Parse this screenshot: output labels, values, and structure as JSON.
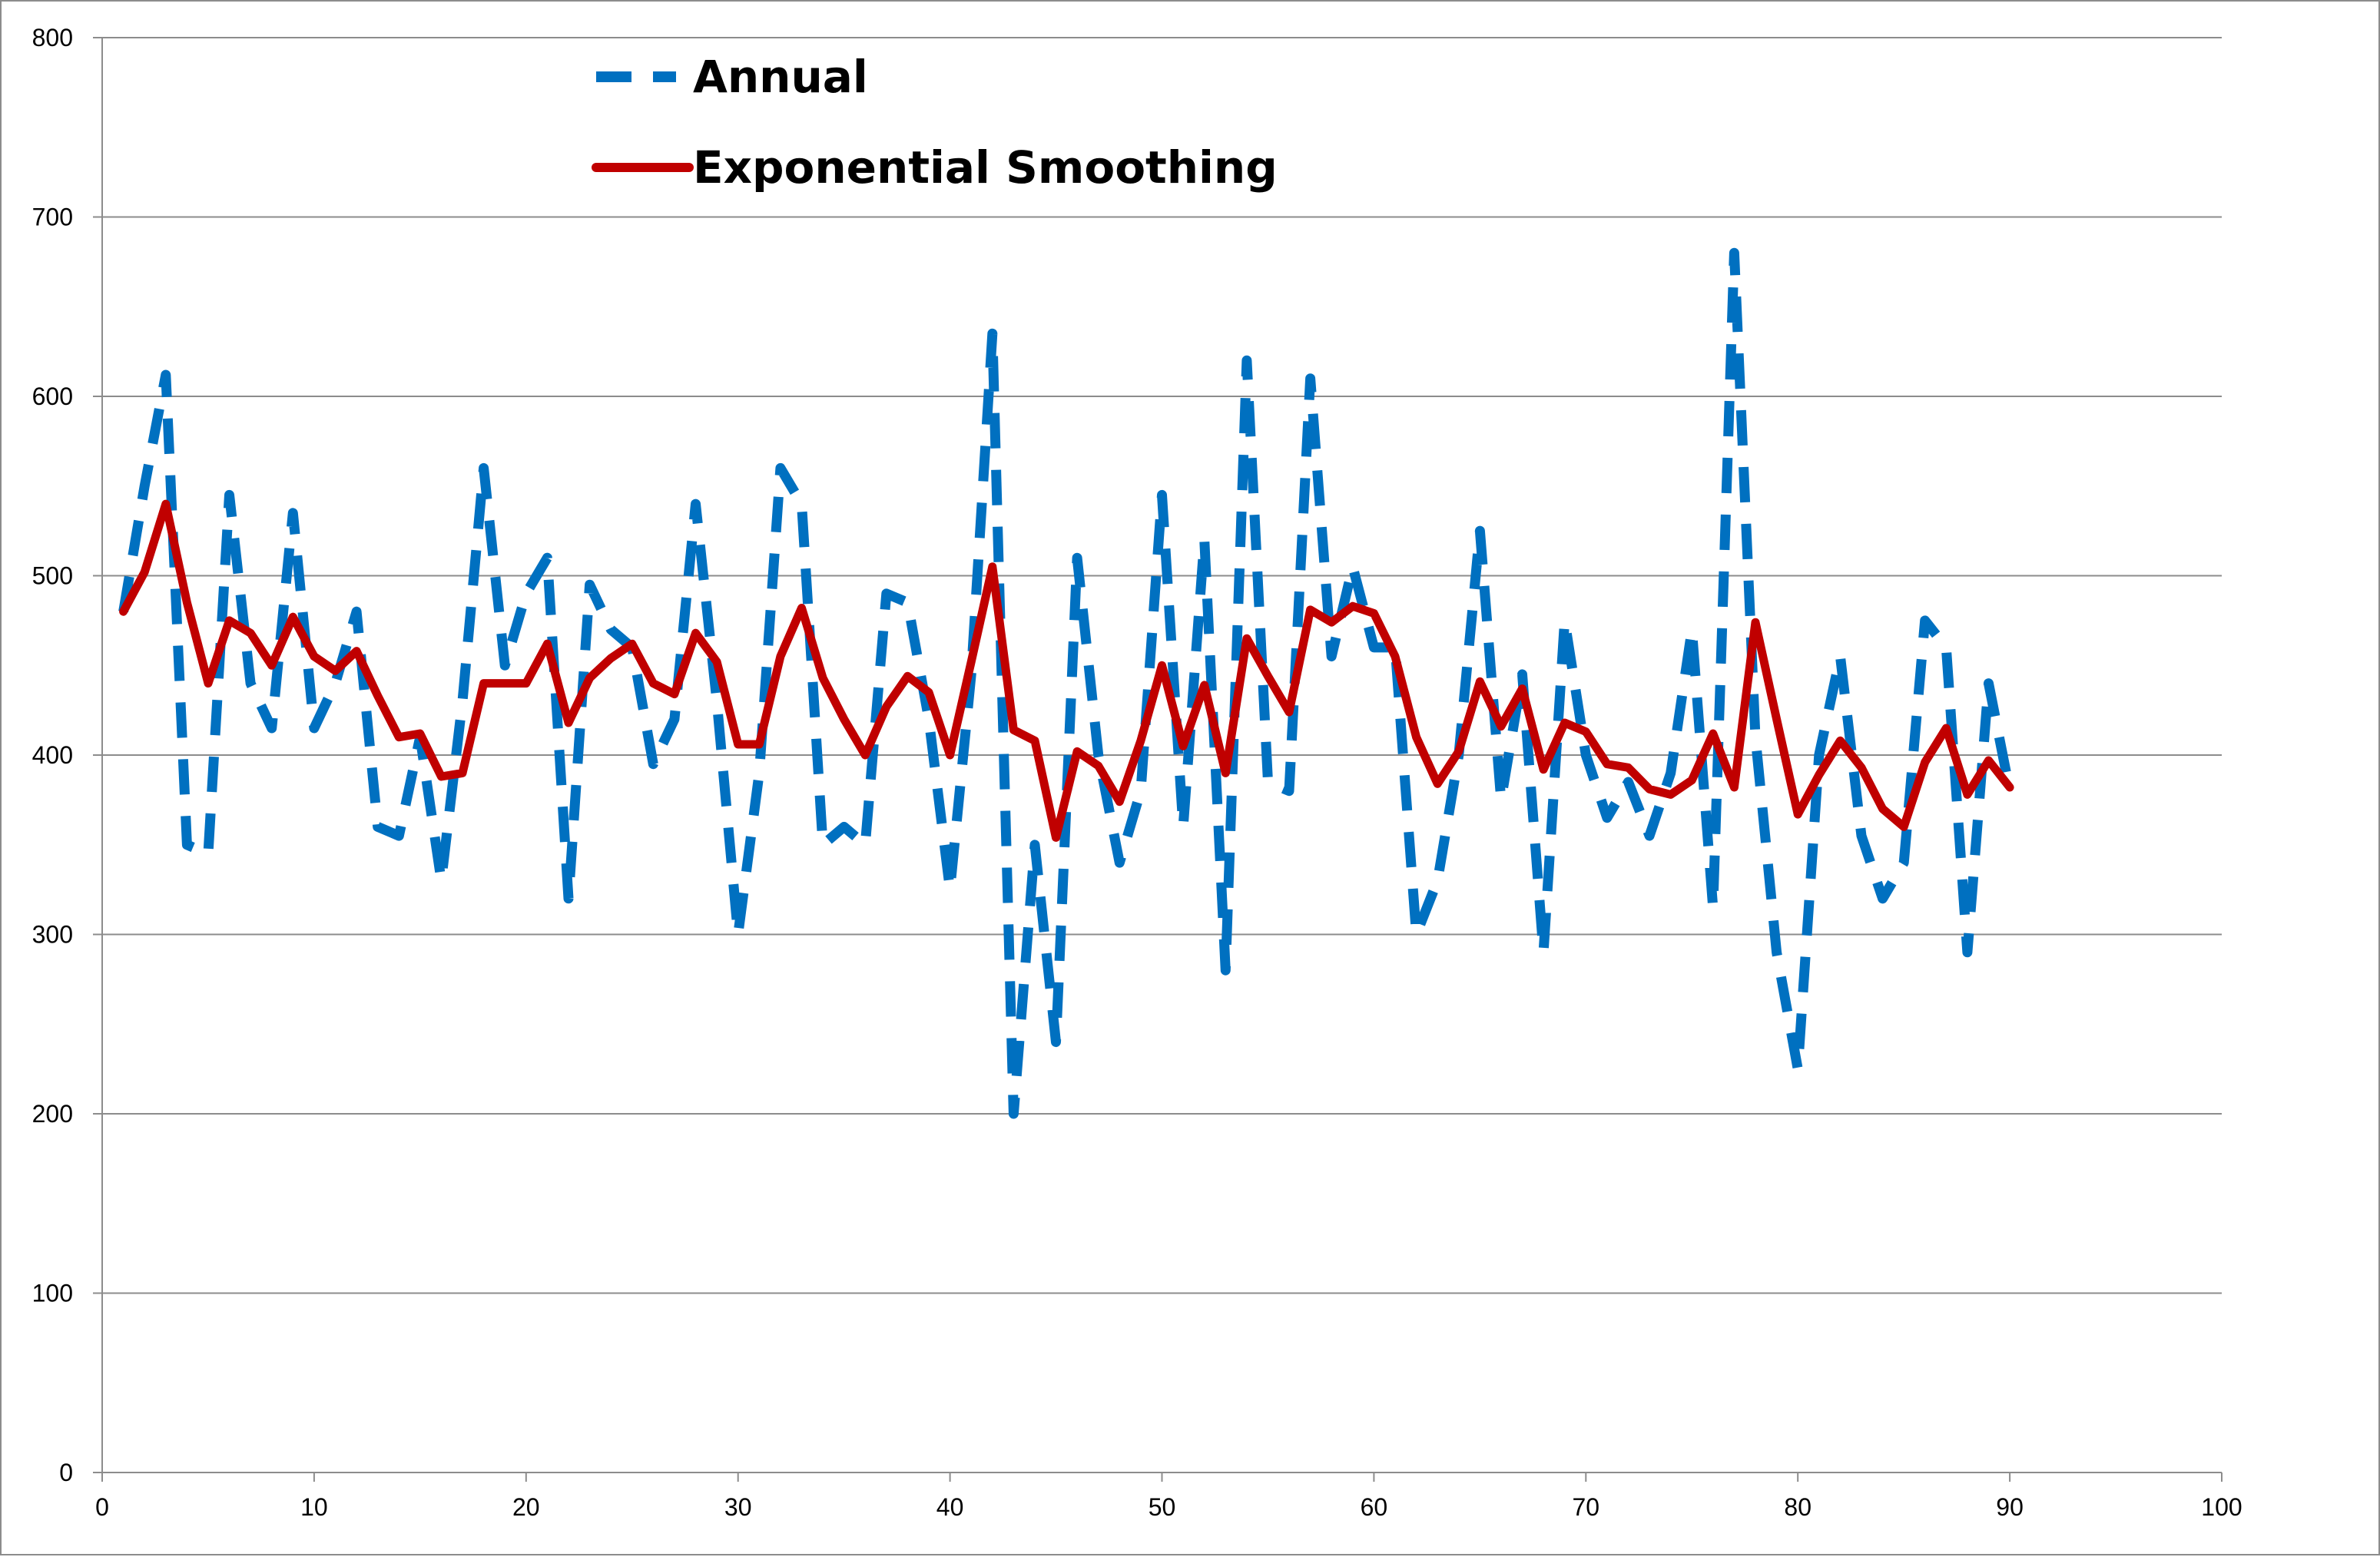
{
  "chart_data": {
    "type": "line",
    "title": "",
    "xlabel": "",
    "ylabel": "",
    "xlim": [
      0,
      100
    ],
    "ylim": [
      0,
      800
    ],
    "x_ticks": [
      "0",
      "10",
      "20",
      "30",
      "40",
      "50",
      "60",
      "70",
      "80",
      "90",
      "100"
    ],
    "y_ticks": [
      "0",
      "100",
      "200",
      "300",
      "400",
      "500",
      "600",
      "700",
      "800"
    ],
    "grid": "horizontal",
    "legend_position": "top-center",
    "x": [
      1,
      2,
      3,
      4,
      5,
      6,
      7,
      8,
      9,
      10,
      11,
      12,
      13,
      14,
      15,
      16,
      17,
      18,
      19,
      20,
      21,
      22,
      23,
      24,
      25,
      26,
      27,
      28,
      29,
      30,
      31,
      32,
      33,
      34,
      35,
      36,
      37,
      38,
      39,
      40,
      41,
      42,
      43,
      44,
      45,
      46,
      47,
      48,
      49,
      50,
      51,
      52,
      53,
      54,
      55,
      56,
      57,
      58,
      59,
      60,
      61,
      62,
      63,
      64,
      65,
      66,
      67,
      68,
      69,
      70,
      71,
      72,
      73,
      74,
      75,
      76,
      77,
      78,
      79,
      80,
      81,
      82,
      83,
      84,
      85,
      86,
      87,
      88,
      89,
      90
    ],
    "series": [
      {
        "name": "Annual",
        "color": "#0070c0",
        "style": "dashed",
        "values": [
          480,
          550,
          612,
          350,
          345,
          545,
          440,
          415,
          535,
          415,
          440,
          480,
          360,
          355,
          410,
          330,
          430,
          560,
          450,
          490,
          510,
          320,
          495,
          470,
          460,
          395,
          420,
          540,
          430,
          300,
          390,
          560,
          540,
          350,
          360,
          350,
          490,
          485,
          420,
          325,
          445,
          635,
          200,
          350,
          240,
          510,
          400,
          340,
          380,
          545,
          360,
          520,
          280,
          620,
          385,
          380,
          610,
          455,
          505,
          460,
          460,
          300,
          330,
          400,
          525,
          375,
          445,
          290,
          475,
          400,
          365,
          385,
          355,
          390,
          470,
          315,
          680,
          410,
          290,
          225,
          400,
          455,
          355,
          320,
          340,
          475,
          460,
          290,
          440,
          380
        ]
      },
      {
        "name": "Exponential Smoothing",
        "color": "#c00000",
        "style": "solid",
        "values": [
          480,
          502,
          540,
          485,
          440,
          475,
          468,
          450,
          477,
          455,
          447,
          458,
          433,
          410,
          412,
          388,
          390,
          440,
          440,
          440,
          462,
          418,
          443,
          454,
          462,
          440,
          434,
          468,
          452,
          406,
          406,
          455,
          482,
          443,
          420,
          400,
          427,
          444,
          435,
          400,
          452,
          505,
          414,
          408,
          354,
          402,
          394,
          374,
          408,
          450,
          405,
          439,
          390,
          465,
          444,
          424,
          481,
          474,
          483,
          479,
          455,
          410,
          384,
          402,
          441,
          416,
          437,
          392,
          418,
          413,
          395,
          393,
          381,
          378,
          386,
          412,
          382,
          474,
          420,
          367,
          389,
          408,
          393,
          370,
          360,
          396,
          415,
          378,
          397,
          382
        ]
      }
    ]
  }
}
